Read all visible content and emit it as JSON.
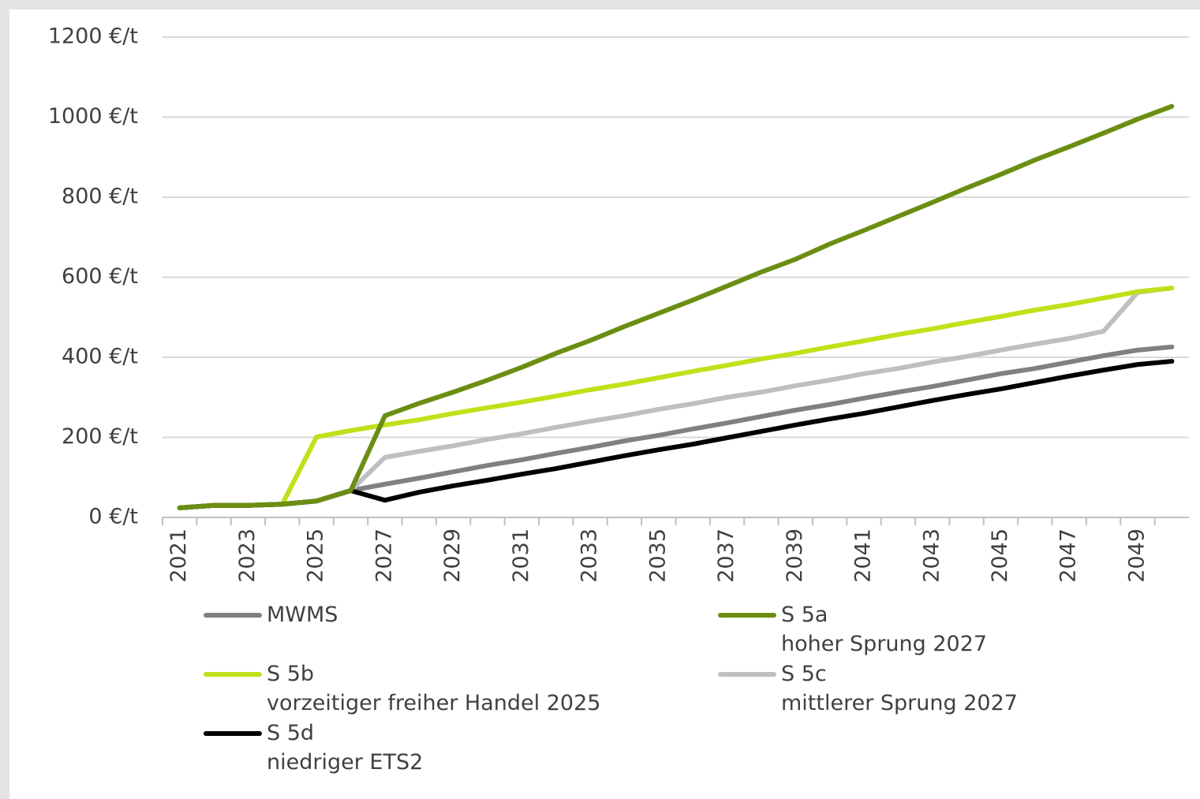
{
  "chart_data": {
    "type": "line",
    "categories": [
      "2021",
      null,
      "2023",
      null,
      "2025",
      null,
      "2027",
      null,
      "2029",
      null,
      "2031",
      null,
      "2033",
      null,
      "2035",
      null,
      "2037",
      null,
      "2039",
      null,
      "2041",
      null,
      "2043",
      null,
      "2045",
      null,
      "2047",
      null,
      "2049",
      null
    ],
    "series": [
      {
        "name": "MWMS",
        "color": "#808080",
        "values": [
          24,
          30,
          30,
          33,
          41,
          67,
          83,
          98,
          114,
          130,
          144,
          160,
          175,
          191,
          205,
          221,
          236,
          252,
          268,
          282,
          298,
          313,
          327,
          343,
          359,
          372,
          388,
          404,
          418,
          426
        ]
      },
      {
        "name": "S 5a\nhoher Sprung 2027",
        "color": "#6b8e12",
        "values": [
          24,
          30,
          30,
          33,
          41,
          67,
          254,
          285,
          313,
          343,
          375,
          410,
          442,
          477,
          510,
          543,
          578,
          613,
          645,
          683,
          717,
          752,
          787,
          823,
          857,
          893,
          926,
          960,
          995,
          1027
        ]
      },
      {
        "name": "S 5b\nvorzeitiger freiher Handel 2025",
        "color": "#c2e01a",
        "values": [
          24,
          30,
          30,
          33,
          201,
          217,
          231,
          244,
          260,
          274,
          288,
          303,
          319,
          333,
          349,
          365,
          380,
          396,
          410,
          426,
          441,
          457,
          471,
          487,
          502,
          518,
          532,
          548,
          564,
          573
        ]
      },
      {
        "name": "S 5c\nmittlerer Sprung 2027",
        "color": "#bfbfbf",
        "values": [
          24,
          30,
          30,
          33,
          41,
          67,
          150,
          165,
          179,
          195,
          209,
          225,
          240,
          254,
          270,
          284,
          300,
          313,
          329,
          343,
          359,
          372,
          388,
          402,
          418,
          433,
          447,
          465,
          562,
          573
        ]
      },
      {
        "name": "S 5d\nniedriger ETS2",
        "color": "#000000",
        "values": [
          24,
          30,
          30,
          33,
          41,
          67,
          43,
          63,
          79,
          93,
          108,
          122,
          138,
          154,
          169,
          183,
          199,
          215,
          231,
          246,
          260,
          276,
          292,
          307,
          321,
          337,
          353,
          368,
          382,
          390
        ]
      }
    ],
    "ylim": [
      0,
      1200
    ],
    "yticks": [
      {
        "value": 0,
        "label": "0 €/t"
      },
      {
        "value": 200,
        "label": "200 €/t"
      },
      {
        "value": 400,
        "label": "400 €/t"
      },
      {
        "value": 600,
        "label": "600 €/t"
      },
      {
        "value": 800,
        "label": "800 €/t"
      },
      {
        "value": 1000,
        "label": "1000 €/t"
      },
      {
        "value": 1200,
        "label": "1200 €/t"
      }
    ],
    "grid": true
  }
}
